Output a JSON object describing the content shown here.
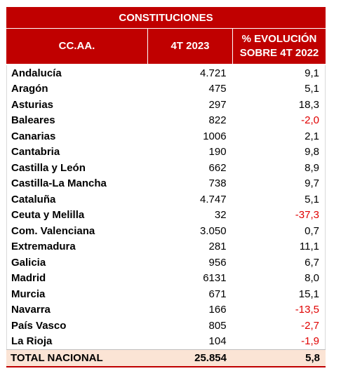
{
  "title": "CONSTITUCIONES",
  "headers": {
    "region": "CC.AA.",
    "value": "4T 2023",
    "change_line1": "% EVOLUCIÓN",
    "change_line2": "SOBRE 4T 2022"
  },
  "rows": [
    {
      "region": "Andalucía",
      "value": "4.721",
      "change": "9,1",
      "negative": false
    },
    {
      "region": "Aragón",
      "value": "475",
      "change": "5,1",
      "negative": false
    },
    {
      "region": "Asturias",
      "value": "297",
      "change": "18,3",
      "negative": false
    },
    {
      "region": "Baleares",
      "value": "822",
      "change": "-2,0",
      "negative": true
    },
    {
      "region": "Canarias",
      "value": "1006",
      "change": "2,1",
      "negative": false
    },
    {
      "region": "Cantabria",
      "value": "190",
      "change": "9,8",
      "negative": false
    },
    {
      "region": "Castilla y León",
      "value": "662",
      "change": "8,9",
      "negative": false
    },
    {
      "region": "Castilla-La Mancha",
      "value": "738",
      "change": "9,7",
      "negative": false
    },
    {
      "region": "Cataluña",
      "value": "4.747",
      "change": "5,1",
      "negative": false
    },
    {
      "region": "Ceuta y Melilla",
      "value": "32",
      "change": "-37,3",
      "negative": true
    },
    {
      "region": "Com. Valenciana",
      "value": "3.050",
      "change": "0,7",
      "negative": false
    },
    {
      "region": "Extremadura",
      "value": "281",
      "change": "11,1",
      "negative": false
    },
    {
      "region": "Galicia",
      "value": "956",
      "change": "6,7",
      "negative": false
    },
    {
      "region": "Madrid",
      "value": "6131",
      "change": "8,0",
      "negative": false
    },
    {
      "region": "Murcia",
      "value": "671",
      "change": "15,1",
      "negative": false
    },
    {
      "region": "Navarra",
      "value": "166",
      "change": "-13,5",
      "negative": true
    },
    {
      "region": "País Vasco",
      "value": "805",
      "change": "-2,7",
      "negative": true
    },
    {
      "region": "La Rioja",
      "value": "104",
      "change": "-1,9",
      "negative": true
    }
  ],
  "total": {
    "region": "TOTAL NACIONAL",
    "value": "25.854",
    "change": "5,8"
  },
  "colors": {
    "header_bg": "#c00000",
    "negative_text": "#e00000",
    "total_bg": "#fbe4d5"
  }
}
